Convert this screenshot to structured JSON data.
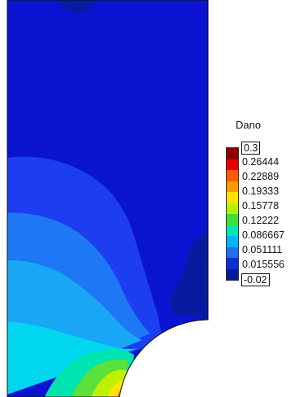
{
  "chart_data": {
    "type": "contour",
    "legend_title": "Dano",
    "levels": [
      "0.3",
      "0.26444",
      "0.22889",
      "0.19333",
      "0.15778",
      "0.12222",
      "0.086667",
      "0.051111",
      "0.015556",
      "-0.02"
    ],
    "colorbar_colors": [
      "#8b0000",
      "#e60000",
      "#ff5a00",
      "#ff9a00",
      "#ffe200",
      "#b6f000",
      "#3fe03a",
      "#00e6b8",
      "#00b4f5",
      "#1f6ff0",
      "#0b2fd8",
      "#001a9c"
    ],
    "field_colors": {
      "background": "#0a14d0",
      "dark": "#081aa0",
      "band_1": "#1c3df0",
      "band_2": "#1e78f5",
      "band_3": "#19a7f5",
      "band_4": "#00d7ef",
      "band_5": "#00e4b0",
      "band_6": "#5ce03a",
      "band_7": "#bff000",
      "band_8": "#ffe600",
      "band_9": "#ff9600"
    }
  }
}
